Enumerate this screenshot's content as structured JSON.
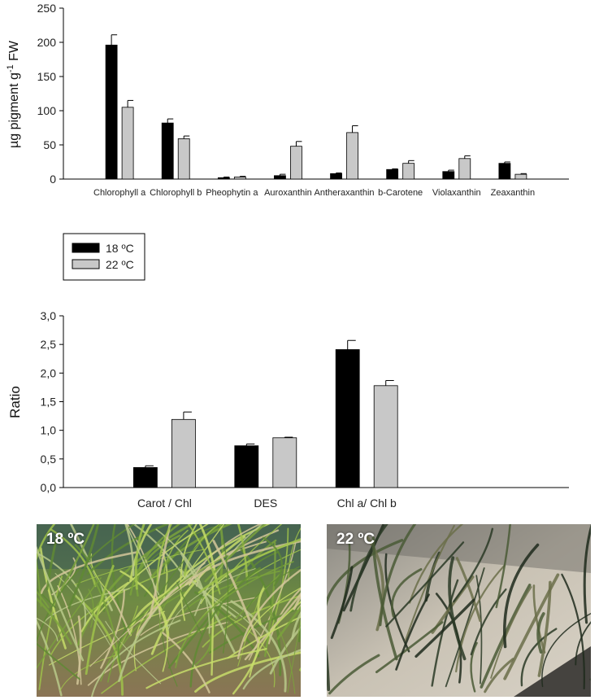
{
  "legend": {
    "entries": [
      {
        "label": "18 ºC",
        "color": "#000000"
      },
      {
        "label": "22 ºC",
        "color": "#c8c8c8"
      }
    ]
  },
  "chart_data": [
    {
      "type": "bar",
      "ylabel_main": "µg pigment g",
      "ylabel_sup": "-1",
      "ylabel_tail": " FW",
      "ylim": [
        0,
        250
      ],
      "yticks": [
        "0",
        "50",
        "100",
        "150",
        "200",
        "250"
      ],
      "categories": [
        "Chlorophyll a",
        "Chlorophyll b",
        "Pheophytin a",
        "Auroxanthin",
        "Antheraxanthin",
        "b-Carotene",
        "Violaxanthin",
        "Zeaxanthin"
      ],
      "series": [
        {
          "name": "18 ºC",
          "color": "#000000",
          "values": [
            196,
            82,
            2,
            5,
            8,
            14,
            11,
            23
          ],
          "errors": [
            15,
            6,
            1,
            2,
            1,
            1,
            2,
            2
          ]
        },
        {
          "name": "22 ºC",
          "color": "#c8c8c8",
          "values": [
            105,
            59,
            3,
            48,
            68,
            23,
            30,
            7
          ],
          "errors": [
            10,
            4,
            1,
            7,
            10,
            4,
            4,
            1
          ]
        }
      ]
    },
    {
      "type": "bar",
      "ylabel": "Ratio",
      "ylim": [
        0,
        3.0
      ],
      "yticks": [
        "0,0",
        "0,5",
        "1,0",
        "1,5",
        "2,0",
        "2,5",
        "3,0"
      ],
      "categories": [
        "Carot / Chl",
        "DES",
        "Chl a/ Chl b"
      ],
      "series": [
        {
          "name": "18 ºC",
          "color": "#000000",
          "values": [
            0.35,
            0.73,
            2.41
          ],
          "errors": [
            0.03,
            0.03,
            0.16
          ]
        },
        {
          "name": "22 ºC",
          "color": "#c8c8c8",
          "values": [
            1.19,
            0.87,
            1.78
          ],
          "errors": [
            0.13,
            0.01,
            0.09
          ]
        }
      ]
    }
  ],
  "photos": [
    {
      "label": "18 ºC"
    },
    {
      "label": "22 ºC"
    }
  ]
}
